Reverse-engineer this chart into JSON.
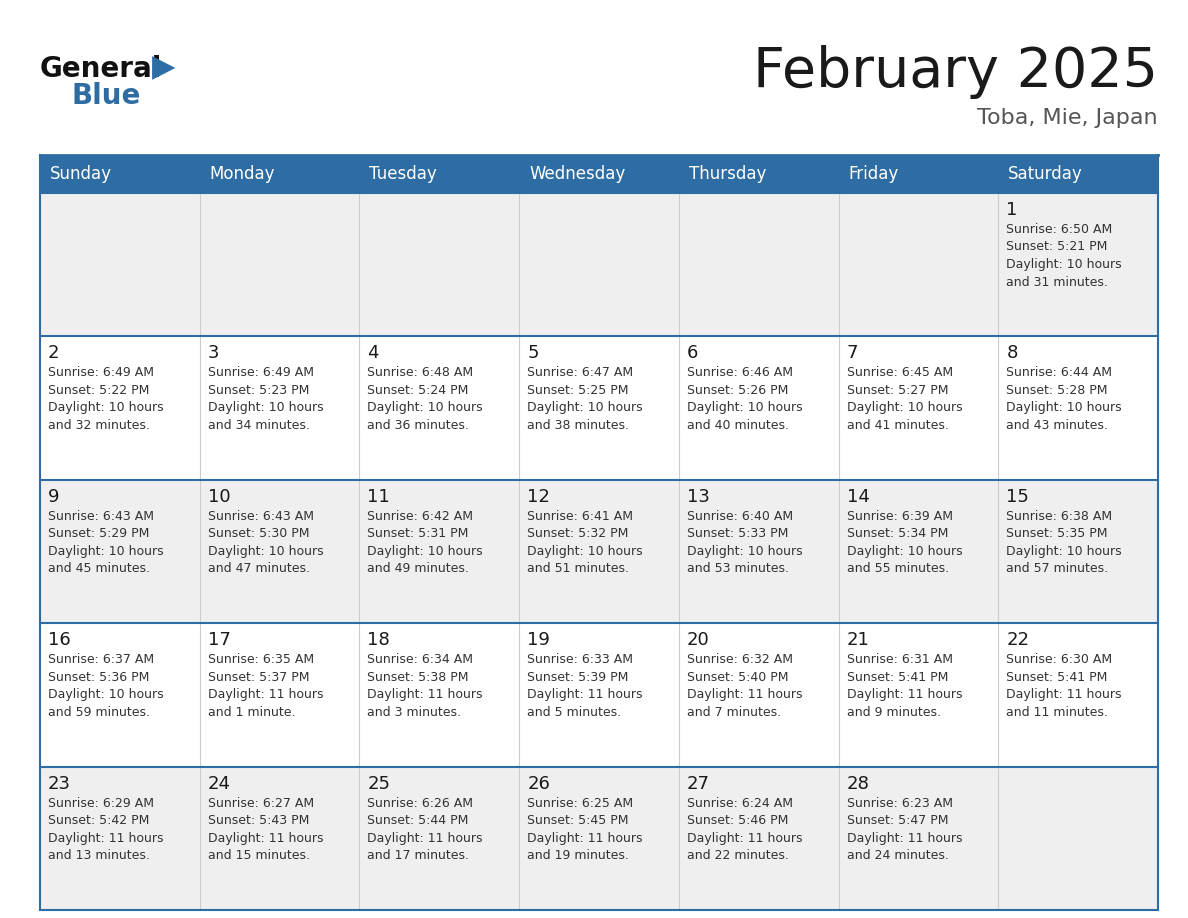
{
  "title": "February 2025",
  "subtitle": "Toba, Mie, Japan",
  "header_bg": "#2E6DA4",
  "header_text_color": "#FFFFFF",
  "border_color": "#2E6DA4",
  "row_sep_color": "#2E6DA4",
  "col_sep_color": "#CCCCCC",
  "cell_bg_odd": "#EFEFEF",
  "cell_bg_even": "#FFFFFF",
  "days_of_week": [
    "Sunday",
    "Monday",
    "Tuesday",
    "Wednesday",
    "Thursday",
    "Friday",
    "Saturday"
  ],
  "title_color": "#1a1a1a",
  "subtitle_color": "#555555",
  "cell_text_color": "#333333",
  "day_number_color": "#1a1a1a",
  "calendar": [
    [
      null,
      null,
      null,
      null,
      null,
      null,
      {
        "day": 1,
        "sunrise": "6:50 AM",
        "sunset": "5:21 PM",
        "daylight_line1": "Daylight: 10 hours",
        "daylight_line2": "and 31 minutes."
      }
    ],
    [
      {
        "day": 2,
        "sunrise": "6:49 AM",
        "sunset": "5:22 PM",
        "daylight_line1": "Daylight: 10 hours",
        "daylight_line2": "and 32 minutes."
      },
      {
        "day": 3,
        "sunrise": "6:49 AM",
        "sunset": "5:23 PM",
        "daylight_line1": "Daylight: 10 hours",
        "daylight_line2": "and 34 minutes."
      },
      {
        "day": 4,
        "sunrise": "6:48 AM",
        "sunset": "5:24 PM",
        "daylight_line1": "Daylight: 10 hours",
        "daylight_line2": "and 36 minutes."
      },
      {
        "day": 5,
        "sunrise": "6:47 AM",
        "sunset": "5:25 PM",
        "daylight_line1": "Daylight: 10 hours",
        "daylight_line2": "and 38 minutes."
      },
      {
        "day": 6,
        "sunrise": "6:46 AM",
        "sunset": "5:26 PM",
        "daylight_line1": "Daylight: 10 hours",
        "daylight_line2": "and 40 minutes."
      },
      {
        "day": 7,
        "sunrise": "6:45 AM",
        "sunset": "5:27 PM",
        "daylight_line1": "Daylight: 10 hours",
        "daylight_line2": "and 41 minutes."
      },
      {
        "day": 8,
        "sunrise": "6:44 AM",
        "sunset": "5:28 PM",
        "daylight_line1": "Daylight: 10 hours",
        "daylight_line2": "and 43 minutes."
      }
    ],
    [
      {
        "day": 9,
        "sunrise": "6:43 AM",
        "sunset": "5:29 PM",
        "daylight_line1": "Daylight: 10 hours",
        "daylight_line2": "and 45 minutes."
      },
      {
        "day": 10,
        "sunrise": "6:43 AM",
        "sunset": "5:30 PM",
        "daylight_line1": "Daylight: 10 hours",
        "daylight_line2": "and 47 minutes."
      },
      {
        "day": 11,
        "sunrise": "6:42 AM",
        "sunset": "5:31 PM",
        "daylight_line1": "Daylight: 10 hours",
        "daylight_line2": "and 49 minutes."
      },
      {
        "day": 12,
        "sunrise": "6:41 AM",
        "sunset": "5:32 PM",
        "daylight_line1": "Daylight: 10 hours",
        "daylight_line2": "and 51 minutes."
      },
      {
        "day": 13,
        "sunrise": "6:40 AM",
        "sunset": "5:33 PM",
        "daylight_line1": "Daylight: 10 hours",
        "daylight_line2": "and 53 minutes."
      },
      {
        "day": 14,
        "sunrise": "6:39 AM",
        "sunset": "5:34 PM",
        "daylight_line1": "Daylight: 10 hours",
        "daylight_line2": "and 55 minutes."
      },
      {
        "day": 15,
        "sunrise": "6:38 AM",
        "sunset": "5:35 PM",
        "daylight_line1": "Daylight: 10 hours",
        "daylight_line2": "and 57 minutes."
      }
    ],
    [
      {
        "day": 16,
        "sunrise": "6:37 AM",
        "sunset": "5:36 PM",
        "daylight_line1": "Daylight: 10 hours",
        "daylight_line2": "and 59 minutes."
      },
      {
        "day": 17,
        "sunrise": "6:35 AM",
        "sunset": "5:37 PM",
        "daylight_line1": "Daylight: 11 hours",
        "daylight_line2": "and 1 minute."
      },
      {
        "day": 18,
        "sunrise": "6:34 AM",
        "sunset": "5:38 PM",
        "daylight_line1": "Daylight: 11 hours",
        "daylight_line2": "and 3 minutes."
      },
      {
        "day": 19,
        "sunrise": "6:33 AM",
        "sunset": "5:39 PM",
        "daylight_line1": "Daylight: 11 hours",
        "daylight_line2": "and 5 minutes."
      },
      {
        "day": 20,
        "sunrise": "6:32 AM",
        "sunset": "5:40 PM",
        "daylight_line1": "Daylight: 11 hours",
        "daylight_line2": "and 7 minutes."
      },
      {
        "day": 21,
        "sunrise": "6:31 AM",
        "sunset": "5:41 PM",
        "daylight_line1": "Daylight: 11 hours",
        "daylight_line2": "and 9 minutes."
      },
      {
        "day": 22,
        "sunrise": "6:30 AM",
        "sunset": "5:41 PM",
        "daylight_line1": "Daylight: 11 hours",
        "daylight_line2": "and 11 minutes."
      }
    ],
    [
      {
        "day": 23,
        "sunrise": "6:29 AM",
        "sunset": "5:42 PM",
        "daylight_line1": "Daylight: 11 hours",
        "daylight_line2": "and 13 minutes."
      },
      {
        "day": 24,
        "sunrise": "6:27 AM",
        "sunset": "5:43 PM",
        "daylight_line1": "Daylight: 11 hours",
        "daylight_line2": "and 15 minutes."
      },
      {
        "day": 25,
        "sunrise": "6:26 AM",
        "sunset": "5:44 PM",
        "daylight_line1": "Daylight: 11 hours",
        "daylight_line2": "and 17 minutes."
      },
      {
        "day": 26,
        "sunrise": "6:25 AM",
        "sunset": "5:45 PM",
        "daylight_line1": "Daylight: 11 hours",
        "daylight_line2": "and 19 minutes."
      },
      {
        "day": 27,
        "sunrise": "6:24 AM",
        "sunset": "5:46 PM",
        "daylight_line1": "Daylight: 11 hours",
        "daylight_line2": "and 22 minutes."
      },
      {
        "day": 28,
        "sunrise": "6:23 AM",
        "sunset": "5:47 PM",
        "daylight_line1": "Daylight: 11 hours",
        "daylight_line2": "and 24 minutes."
      },
      null
    ]
  ]
}
